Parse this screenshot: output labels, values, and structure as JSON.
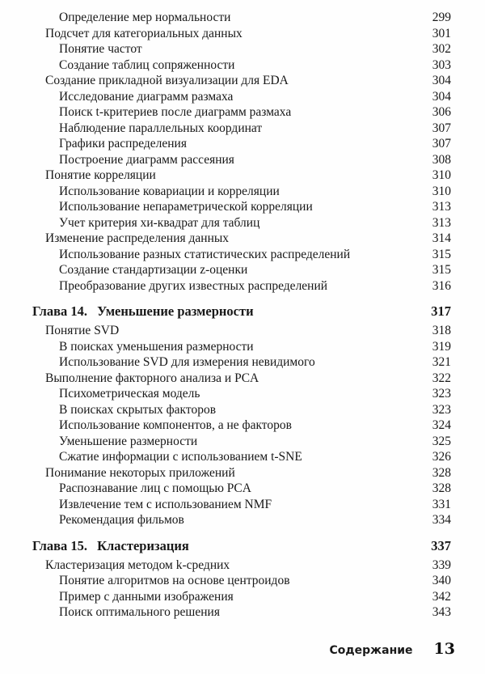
{
  "footer": {
    "section_label": "Содержание",
    "page_number": "13"
  },
  "toc": {
    "entries": [
      {
        "level": 2,
        "title": "Определение мер нормальности",
        "page": "299"
      },
      {
        "level": 1,
        "title": "Подсчет для категориальных данных",
        "page": "301"
      },
      {
        "level": 2,
        "title": "Понятие частот",
        "page": "302"
      },
      {
        "level": 2,
        "title": "Создание таблиц сопряженности",
        "page": "303"
      },
      {
        "level": 1,
        "title": "Создание прикладной визуализации для EDA",
        "page": "304"
      },
      {
        "level": 2,
        "title": "Исследование диаграмм размаха",
        "page": "304"
      },
      {
        "level": 2,
        "title": "Поиск t-критериев после диаграмм размаха",
        "page": "306"
      },
      {
        "level": 2,
        "title": "Наблюдение параллельных координат",
        "page": "307"
      },
      {
        "level": 2,
        "title": "Графики распределения",
        "page": "307"
      },
      {
        "level": 2,
        "title": "Построение диаграмм рассеяния",
        "page": "308"
      },
      {
        "level": 1,
        "title": "Понятие корреляции",
        "page": "310"
      },
      {
        "level": 2,
        "title": "Использование ковариации и корреляции",
        "page": "310"
      },
      {
        "level": 2,
        "title": "Использование непараметрической корреляции",
        "page": "313"
      },
      {
        "level": 2,
        "title": "Учет критерия хи-квадрат для таблиц",
        "page": "313"
      },
      {
        "level": 1,
        "title": "Изменение распределения данных",
        "page": "314"
      },
      {
        "level": 2,
        "title": "Использование разных статистических распределений",
        "page": "315"
      },
      {
        "level": 2,
        "title": "Создание стандартизации z-оценки",
        "page": "315"
      },
      {
        "level": 2,
        "title": "Преобразование других известных распределений",
        "page": "316"
      },
      {
        "level": "chapter",
        "label": "Глава 14.",
        "title": "Уменьшение размерности",
        "page": "317"
      },
      {
        "level": 1,
        "title": "Понятие SVD",
        "page": "318"
      },
      {
        "level": 2,
        "title": "В поисках уменьшения размерности",
        "page": "319"
      },
      {
        "level": 2,
        "title": "Использование SVD для измерения невидимого",
        "page": "321"
      },
      {
        "level": 1,
        "title": "Выполнение факторного анализа и PCA",
        "page": "322"
      },
      {
        "level": 2,
        "title": "Психометрическая модель",
        "page": "323"
      },
      {
        "level": 2,
        "title": "В поисках скрытых факторов",
        "page": "323"
      },
      {
        "level": 2,
        "title": "Использование компонентов, а не факторов",
        "page": "324"
      },
      {
        "level": 2,
        "title": "Уменьшение размерности",
        "page": "325"
      },
      {
        "level": 2,
        "title": "Сжатие информации с использованием t-SNE",
        "page": "326"
      },
      {
        "level": 1,
        "title": "Понимание некоторых приложений",
        "page": "328"
      },
      {
        "level": 2,
        "title": "Распознавание лиц с помощью PCA",
        "page": "328"
      },
      {
        "level": 2,
        "title": "Извлечение тем с использованием NMF",
        "page": "331"
      },
      {
        "level": 2,
        "title": "Рекомендация фильмов",
        "page": "334"
      },
      {
        "level": "chapter",
        "label": "Глава 15.",
        "title": "Кластеризация",
        "page": "337"
      },
      {
        "level": 1,
        "title": "Кластеризация методом k-средних",
        "page": "339"
      },
      {
        "level": 2,
        "title": "Понятие алгоритмов на основе центроидов",
        "page": "340"
      },
      {
        "level": 2,
        "title": "Пример с данными изображения",
        "page": "342"
      },
      {
        "level": 2,
        "title": "Поиск оптимального решения",
        "page": "343"
      }
    ]
  }
}
